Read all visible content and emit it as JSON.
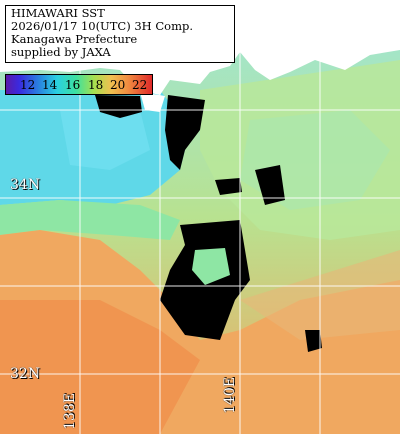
{
  "info": {
    "line1": "HIMAWARI SST",
    "line2": "2026/01/17 10(UTC) 3H Comp.",
    "line3": "Kanagawa Prefecture",
    "line4": "supplied by JAXA"
  },
  "legend": {
    "ticks": [
      "12",
      "14",
      "16",
      "18",
      "20",
      "22"
    ],
    "colors": [
      "#5b1aa8",
      "#2a7fe0",
      "#2ad0e0",
      "#3ee0a0",
      "#a4e050",
      "#f0c050",
      "#f08a40",
      "#e02a2a"
    ]
  },
  "grid": {
    "latitudes": [
      "34N",
      "32N"
    ],
    "longitudes": [
      "138E",
      "140E"
    ]
  },
  "palette": {
    "land": "#ffffff",
    "cloud": "#000000",
    "cold_water": "#5fd8e8",
    "mid_water": "#8ee6a4",
    "warm_water": "#f0a860"
  }
}
